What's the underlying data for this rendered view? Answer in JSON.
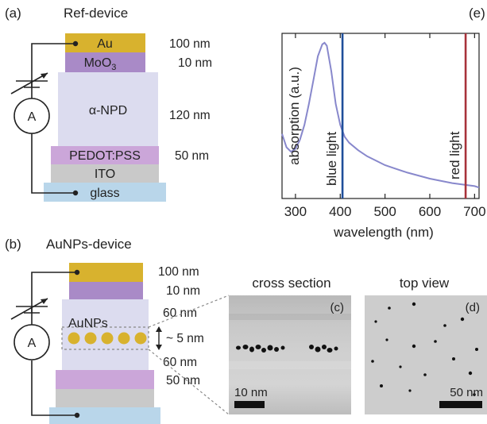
{
  "panel_a": {
    "tag": "(a)",
    "title": "Ref-device",
    "layers": [
      {
        "name": "Au",
        "thickness": "100 nm",
        "color": "#d8b22e"
      },
      {
        "name": "MoO",
        "sub": "3",
        "thickness": "10 nm",
        "color": "#a98ac7"
      },
      {
        "name": "α-NPD",
        "thickness": "120 nm",
        "color": "#dcdcef"
      },
      {
        "name": "PEDOT:PSS",
        "thickness": "50 nm",
        "color": "#cba6d9"
      },
      {
        "name": "ITO",
        "thickness": "",
        "color": "#c9c9c9"
      },
      {
        "name": "glass",
        "thickness": "",
        "color": "#b9d6ea"
      }
    ],
    "ammeter": "A"
  },
  "panel_b": {
    "tag": "(b)",
    "title": "AuNPs-device",
    "thicknesses": [
      "100 nm",
      "10 nm",
      "60 nm",
      "60 nm",
      "50 nm"
    ],
    "np_label": "AuNPs",
    "gap_label": "~ 5 nm",
    "ammeter": "A"
  },
  "panel_c": {
    "title": "cross section",
    "tag": "(c)",
    "scale": "10 nm"
  },
  "panel_d": {
    "title": "top view",
    "tag": "(d)",
    "scale": "50 nm"
  },
  "panel_e": {
    "tag": "(e)",
    "ylabel": "absorption (a.u.)",
    "xlabel": "wavelength (nm)",
    "xticks": [
      "300",
      "400",
      "500",
      "600",
      "700"
    ],
    "lines": [
      {
        "label": "blue light",
        "x": 405,
        "color": "#1f4e9a"
      },
      {
        "label": "red light",
        "x": 680,
        "color": "#a8323a"
      }
    ]
  },
  "chart_data": {
    "type": "line",
    "title": "",
    "xlabel": "wavelength (nm)",
    "ylabel": "absorption (a.u.)",
    "xlim": [
      270,
      710
    ],
    "ylim": [
      0,
      1
    ],
    "series": [
      {
        "x": [
          270,
          280,
          290,
          300,
          310,
          320,
          330,
          340,
          350,
          360,
          365,
          370,
          380,
          390,
          400,
          410,
          420,
          440,
          460,
          480,
          500,
          520,
          550,
          600,
          650,
          700,
          710
        ],
        "y": [
          0.38,
          0.29,
          0.26,
          0.28,
          0.34,
          0.44,
          0.58,
          0.74,
          0.9,
          0.98,
          0.99,
          0.97,
          0.8,
          0.58,
          0.44,
          0.36,
          0.32,
          0.27,
          0.23,
          0.2,
          0.17,
          0.15,
          0.12,
          0.08,
          0.05,
          0.03,
          0.02
        ],
        "color": "#8888cc"
      }
    ],
    "grid": false
  }
}
